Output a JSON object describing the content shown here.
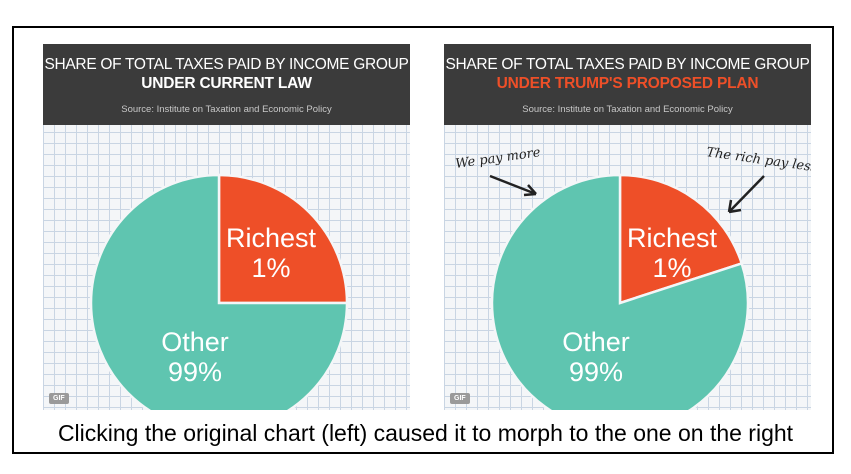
{
  "caption": "Clicking the original chart (left) caused it to morph to the one on the right",
  "gif_badge": "GIF",
  "colors": {
    "other": "#5fc5b0",
    "richest": "#ee4f28",
    "header_bg": "#3b3b3b",
    "header_accent": "#ee4f28"
  },
  "chart_data": [
    {
      "type": "pie",
      "title": "SHARE OF TOTAL TAXES PAID BY INCOME GROUP",
      "subtitle": "UNDER CURRENT LAW",
      "source": "Source: Institute on Taxation and Economic Policy",
      "slices": [
        {
          "name": "Richest",
          "pct_label": "1%",
          "value": 25
        },
        {
          "name": "Other",
          "pct_label": "99%",
          "value": 75
        }
      ],
      "annotations": []
    },
    {
      "type": "pie",
      "title": "SHARE OF TOTAL TAXES PAID BY INCOME GROUP",
      "subtitle": "UNDER TRUMP'S PROPOSED PLAN",
      "source": "Source: Institute on Taxation and Economic Policy",
      "slices": [
        {
          "name": "Richest",
          "pct_label": "1%",
          "value": 20
        },
        {
          "name": "Other",
          "pct_label": "99%",
          "value": 80
        }
      ],
      "annotations": [
        "We pay more",
        "The rich pay less"
      ]
    }
  ]
}
